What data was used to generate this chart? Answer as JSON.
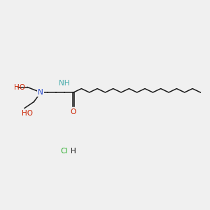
{
  "background_color": "#f0f0f0",
  "bond_color": "#1a1a1a",
  "N_color": "#2244cc",
  "O_color": "#cc2200",
  "NH_color": "#44aaaa",
  "Cl_color": "#22aa22",
  "H_color": "#1a1a1a",
  "HO1_label": "HO",
  "HO2_label": "HO",
  "N_label": "N",
  "NH_label": "NH",
  "O_label": "O",
  "Cl_label": "Cl",
  "H_label": "H",
  "figsize": [
    3.0,
    3.0
  ],
  "dpi": 100,
  "font_size": 7.5,
  "xlim": [
    0,
    18
  ],
  "ylim": [
    0,
    10
  ]
}
